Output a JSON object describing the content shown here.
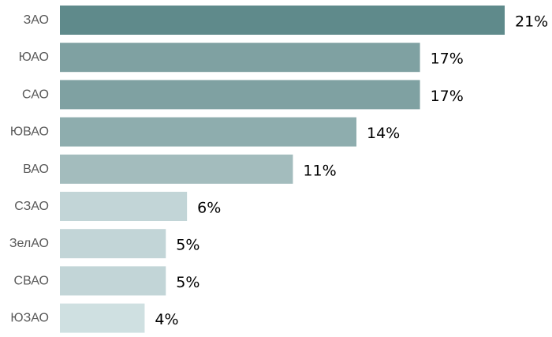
{
  "chart_data": {
    "type": "bar",
    "orientation": "horizontal",
    "categories": [
      "ЗАО",
      "ЮАО",
      "САО",
      "ЮВАО",
      "ВАО",
      "СЗАО",
      "ЗелАО",
      "СВАО",
      "ЮЗАО"
    ],
    "values": [
      21,
      17,
      17,
      14,
      11,
      6,
      5,
      5,
      4
    ],
    "value_labels": [
      "21%",
      "17%",
      "17%",
      "14%",
      "11%",
      "6%",
      "5%",
      "5%",
      "4%"
    ],
    "bar_colors": [
      "#5f8a8b",
      "#7fa1a2",
      "#7fa1a2",
      "#8eadae",
      "#a3bcbd",
      "#c2d5d7",
      "#c2d5d7",
      "#c2d5d7",
      "#cfe0e1"
    ],
    "title": "",
    "xlabel": "",
    "ylabel": "",
    "xlim": [
      0,
      21
    ],
    "grid": false,
    "legend": "none"
  }
}
